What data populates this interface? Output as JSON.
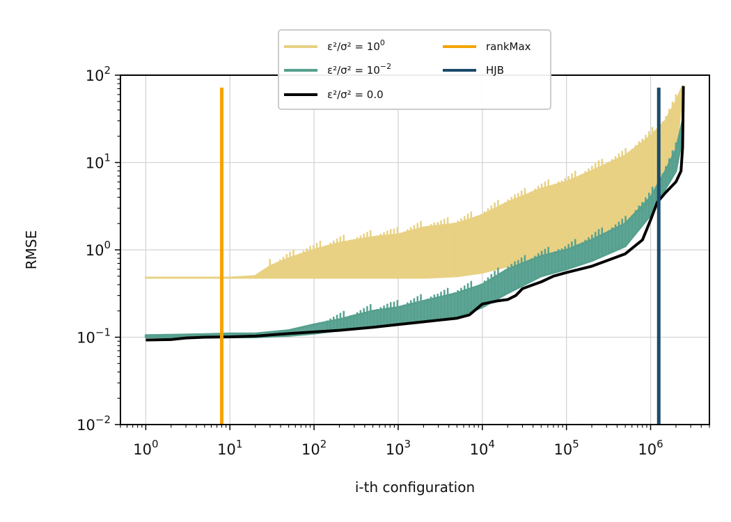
{
  "chart_data": {
    "type": "line",
    "xlabel": "i-th configuration",
    "ylabel": "RMSE",
    "xscale": "log",
    "yscale": "log",
    "xlim": [
      0.5,
      5000000
    ],
    "ylim": [
      0.01,
      100
    ],
    "grid": true,
    "legend_position": "top-center",
    "x_ticks": [
      {
        "base": "10",
        "exp": "0"
      },
      {
        "base": "10",
        "exp": "1"
      },
      {
        "base": "10",
        "exp": "2"
      },
      {
        "base": "10",
        "exp": "3"
      },
      {
        "base": "10",
        "exp": "4"
      },
      {
        "base": "10",
        "exp": "5"
      },
      {
        "base": "10",
        "exp": "6"
      }
    ],
    "y_ticks": [
      {
        "base": "10",
        "exp": "−2"
      },
      {
        "base": "10",
        "exp": "−1"
      },
      {
        "base": "10",
        "exp": "0"
      },
      {
        "base": "10",
        "exp": "1"
      },
      {
        "base": "10",
        "exp": "2"
      }
    ],
    "series": [
      {
        "name_main": "ε²/σ² = 10",
        "name_exp": "0",
        "color": "#e8d183",
        "kind": "band",
        "x": [
          1,
          5,
          10,
          20,
          30,
          50,
          100,
          200,
          500,
          1000,
          2000,
          5000,
          10000,
          20000,
          50000,
          100000,
          200000,
          500000,
          1000000,
          1500000,
          2000000,
          2400000
        ],
        "lower": [
          0.48,
          0.48,
          0.48,
          0.48,
          0.48,
          0.48,
          0.48,
          0.48,
          0.48,
          0.48,
          0.48,
          0.5,
          0.55,
          0.65,
          0.8,
          1.0,
          1.3,
          2.0,
          3.5,
          6.0,
          12.0,
          70.0
        ],
        "upper": [
          0.48,
          0.48,
          0.48,
          0.5,
          0.65,
          0.8,
          1.0,
          1.2,
          1.4,
          1.5,
          1.8,
          2.0,
          2.5,
          3.5,
          5.0,
          6.0,
          8.0,
          12.0,
          20.0,
          30.0,
          50.0,
          75.0
        ]
      },
      {
        "name_main": "ε²/σ² = 10",
        "name_exp": "−2",
        "color": "#56a08f",
        "kind": "band",
        "x": [
          1,
          5,
          10,
          20,
          50,
          100,
          200,
          500,
          1000,
          2000,
          5000,
          10000,
          20000,
          50000,
          100000,
          200000,
          500000,
          1000000,
          1500000,
          2000000,
          2400000
        ],
        "lower": [
          0.1,
          0.1,
          0.1,
          0.1,
          0.104,
          0.11,
          0.12,
          0.13,
          0.14,
          0.15,
          0.17,
          0.22,
          0.32,
          0.5,
          0.6,
          0.75,
          1.1,
          2.5,
          5.0,
          8.0,
          20.0
        ],
        "upper": [
          0.105,
          0.108,
          0.11,
          0.11,
          0.12,
          0.14,
          0.16,
          0.2,
          0.22,
          0.26,
          0.32,
          0.4,
          0.6,
          0.85,
          1.0,
          1.3,
          2.0,
          4.0,
          8.0,
          14.0,
          30.0
        ]
      },
      {
        "name_main": "ε²/σ² = 0.0",
        "name_exp": "",
        "color": "#000000",
        "kind": "line",
        "x": [
          1,
          2,
          3,
          5,
          10,
          20,
          30,
          50,
          100,
          200,
          500,
          1000,
          2000,
          5000,
          7000,
          8000,
          10000,
          15000,
          20000,
          25000,
          30000,
          50000,
          70000,
          100000,
          200000,
          500000,
          800000,
          1000000,
          1200000,
          1500000,
          2000000,
          2300000,
          2400000,
          2450000
        ],
        "y": [
          0.093,
          0.094,
          0.098,
          0.1,
          0.101,
          0.103,
          0.106,
          0.11,
          0.115,
          0.12,
          0.13,
          0.14,
          0.15,
          0.165,
          0.18,
          0.2,
          0.24,
          0.26,
          0.27,
          0.3,
          0.36,
          0.43,
          0.5,
          0.55,
          0.65,
          0.9,
          1.3,
          2.2,
          3.5,
          4.5,
          6.0,
          8.0,
          15.0,
          75.0
        ]
      },
      {
        "name_main": "rankMax",
        "name_exp": "",
        "color": "#f5a300",
        "kind": "vline",
        "x": 8,
        "y": [
          0.01,
          72
        ]
      },
      {
        "name_main": "HJB",
        "name_exp": "",
        "color": "#1b4a6b",
        "kind": "vline",
        "x": 1250000,
        "y": [
          0.01,
          72
        ]
      }
    ]
  }
}
